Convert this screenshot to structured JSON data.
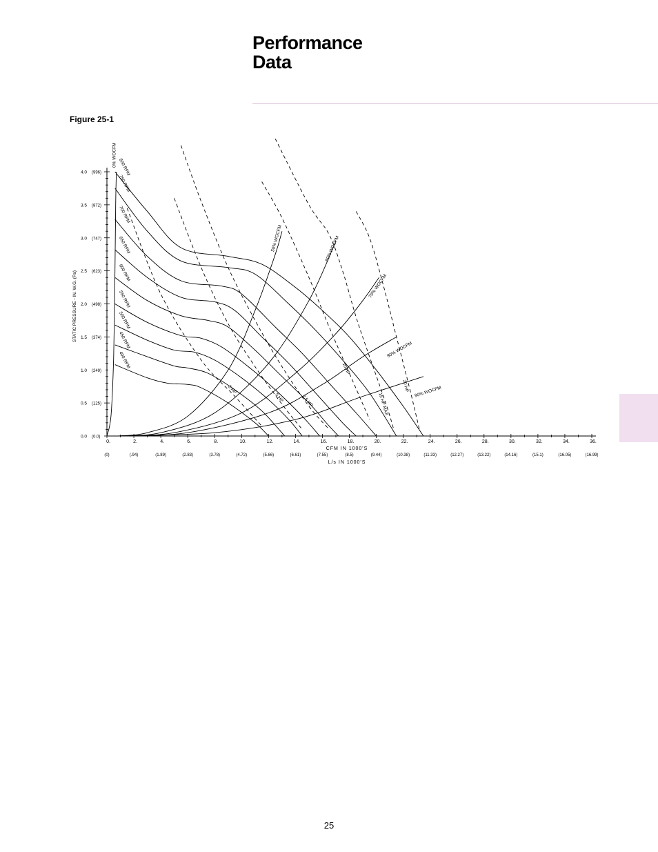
{
  "page": {
    "title_line1": "Performance",
    "title_line2": "Data",
    "figure_label": "Figure 25-1",
    "page_number": "25",
    "accent_color": "#f1dff0",
    "rule_color": "#d9b8d3"
  },
  "chart_data": {
    "type": "line",
    "title": "",
    "xlabel": "CFM IN   1000'S",
    "xlabel2": "L/s IN 1000'S",
    "ylabel": "STATIC PRESSURE - IN. W.G.  (Pa)",
    "xlim": [
      0,
      36
    ],
    "ylim": [
      0,
      4
    ],
    "grid": false,
    "x_ticks": [
      {
        "v": 0,
        "label": "0.",
        "si": "(0)"
      },
      {
        "v": 2,
        "label": "2.",
        "si": "(.94)"
      },
      {
        "v": 4,
        "label": "4.",
        "si": "(1.89)"
      },
      {
        "v": 6,
        "label": "6.",
        "si": "(2.83)"
      },
      {
        "v": 8,
        "label": "8.",
        "si": "(3.78)"
      },
      {
        "v": 10,
        "label": "10.",
        "si": "(4.72)"
      },
      {
        "v": 12,
        "label": "12.",
        "si": "(5.66)"
      },
      {
        "v": 14,
        "label": "14.",
        "si": "(6.61)"
      },
      {
        "v": 16,
        "label": "16.",
        "si": "(7.55)"
      },
      {
        "v": 18,
        "label": "18.",
        "si": "(8.5)"
      },
      {
        "v": 20,
        "label": "20.",
        "si": "(9.44)"
      },
      {
        "v": 22,
        "label": "22.",
        "si": "(10.38)"
      },
      {
        "v": 24,
        "label": "24.",
        "si": "(11.33)"
      },
      {
        "v": 26,
        "label": "26.",
        "si": "(12.27)"
      },
      {
        "v": 28,
        "label": "28.",
        "si": "(13.22)"
      },
      {
        "v": 30,
        "label": "30.",
        "si": "(14.16)"
      },
      {
        "v": 32,
        "label": "32.",
        "si": "(15.1)"
      },
      {
        "v": 34,
        "label": "34.",
        "si": "(16.05)"
      },
      {
        "v": 36,
        "label": "36.",
        "si": "(16.99)"
      }
    ],
    "y_ticks": [
      {
        "v": 0,
        "label": "0.0",
        "si": "(0.0)"
      },
      {
        "v": 0.5,
        "label": "0.5",
        "si": "(125)"
      },
      {
        "v": 1.0,
        "label": "1.0",
        "si": "(249)"
      },
      {
        "v": 1.5,
        "label": "1.5",
        "si": "(374)"
      },
      {
        "v": 2.0,
        "label": "2.0",
        "si": "(498)"
      },
      {
        "v": 2.5,
        "label": "2.5",
        "si": "(623)"
      },
      {
        "v": 3.0,
        "label": "3.0",
        "si": "(747)"
      },
      {
        "v": 3.5,
        "label": "3.5",
        "si": "(872)"
      },
      {
        "v": 4.0,
        "label": "4.0",
        "si": "(996)"
      }
    ],
    "rpm_curves": [
      {
        "name": "800 RPM",
        "points": [
          [
            0.6,
            4.0
          ],
          [
            3,
            3.4
          ],
          [
            5.5,
            2.85
          ],
          [
            9,
            2.72
          ],
          [
            11.5,
            2.6
          ],
          [
            14,
            2.25
          ],
          [
            16,
            1.9
          ],
          [
            18,
            1.5
          ],
          [
            20,
            1.0
          ],
          [
            22,
            0.45
          ],
          [
            23.5,
            0.0
          ]
        ]
      },
      {
        "name": "750 RPM",
        "points": [
          [
            0.6,
            3.75
          ],
          [
            3,
            3.1
          ],
          [
            5.5,
            2.65
          ],
          [
            9,
            2.55
          ],
          [
            11,
            2.45
          ],
          [
            13.5,
            2.0
          ],
          [
            15.5,
            1.6
          ],
          [
            17.5,
            1.15
          ],
          [
            19.5,
            0.65
          ],
          [
            21.5,
            0.0
          ]
        ]
      },
      {
        "name": "700 RPM",
        "points": [
          [
            0.6,
            3.28
          ],
          [
            3,
            2.72
          ],
          [
            5.5,
            2.35
          ],
          [
            8.5,
            2.27
          ],
          [
            10,
            2.15
          ],
          [
            12.5,
            1.65
          ],
          [
            14.5,
            1.25
          ],
          [
            16.5,
            0.8
          ],
          [
            18.5,
            0.35
          ],
          [
            20,
            0.0
          ]
        ]
      },
      {
        "name": "650 RPM",
        "points": [
          [
            0.6,
            2.82
          ],
          [
            3,
            2.4
          ],
          [
            5.5,
            2.1
          ],
          [
            8,
            2.03
          ],
          [
            9.5,
            1.9
          ],
          [
            11.5,
            1.5
          ],
          [
            13.5,
            1.1
          ],
          [
            15.5,
            0.65
          ],
          [
            17.5,
            0.2
          ],
          [
            18.5,
            0.0
          ]
        ]
      },
      {
        "name": "600 RPM",
        "points": [
          [
            0.6,
            2.4
          ],
          [
            3,
            2.05
          ],
          [
            5.5,
            1.82
          ],
          [
            7.5,
            1.75
          ],
          [
            9,
            1.65
          ],
          [
            11,
            1.3
          ],
          [
            13,
            0.9
          ],
          [
            15,
            0.5
          ],
          [
            16.5,
            0.15
          ],
          [
            17.2,
            0.0
          ]
        ]
      },
      {
        "name": "550 RPM",
        "points": [
          [
            0.6,
            2.0
          ],
          [
            3,
            1.72
          ],
          [
            5.5,
            1.52
          ],
          [
            7,
            1.48
          ],
          [
            8.5,
            1.35
          ],
          [
            10.5,
            1.05
          ],
          [
            12.5,
            0.7
          ],
          [
            14.5,
            0.3
          ],
          [
            15.8,
            0.0
          ]
        ]
      },
      {
        "name": "500 RPM",
        "points": [
          [
            0.6,
            1.68
          ],
          [
            3,
            1.45
          ],
          [
            5,
            1.3
          ],
          [
            6.5,
            1.27
          ],
          [
            8,
            1.15
          ],
          [
            10,
            0.88
          ],
          [
            12,
            0.55
          ],
          [
            13.5,
            0.25
          ],
          [
            14.5,
            0.0
          ]
        ]
      },
      {
        "name": "450 RPM",
        "points": [
          [
            0.6,
            1.38
          ],
          [
            3,
            1.2
          ],
          [
            5,
            1.06
          ],
          [
            6,
            1.03
          ],
          [
            7.5,
            0.95
          ],
          [
            9.5,
            0.7
          ],
          [
            11.5,
            0.38
          ],
          [
            13.2,
            0.0
          ]
        ]
      },
      {
        "name": "400 RPM",
        "points": [
          [
            0.6,
            1.08
          ],
          [
            3,
            0.88
          ],
          [
            4.5,
            0.8
          ],
          [
            6,
            0.78
          ],
          [
            7,
            0.73
          ],
          [
            9,
            0.5
          ],
          [
            11,
            0.2
          ],
          [
            12,
            0.0
          ]
        ]
      }
    ],
    "wocfm_curves": [
      {
        "name": "0% WOCFM",
        "points": [
          [
            0,
            0.0
          ],
          [
            0.3,
            0.3
          ],
          [
            0.5,
            1.2
          ],
          [
            0.6,
            2.5
          ],
          [
            0.65,
            3.5
          ],
          [
            0.7,
            4.0
          ]
        ]
      },
      {
        "name": "50% WOCFM",
        "points": [
          [
            0.8,
            0
          ],
          [
            3,
            0.05
          ],
          [
            6,
            0.3
          ],
          [
            9,
            1.0
          ],
          [
            11,
            1.9
          ],
          [
            12.5,
            2.75
          ],
          [
            13,
            3.1
          ]
        ]
      },
      {
        "name": "60% WOCFM",
        "points": [
          [
            0.8,
            0
          ],
          [
            4,
            0.05
          ],
          [
            8,
            0.35
          ],
          [
            12,
            1.1
          ],
          [
            15,
            2.05
          ],
          [
            17,
            2.95
          ]
        ]
      },
      {
        "name": "70% WOCFM",
        "points": [
          [
            0.8,
            0
          ],
          [
            5,
            0.05
          ],
          [
            10,
            0.35
          ],
          [
            14,
            0.95
          ],
          [
            17,
            1.55
          ],
          [
            19,
            2.05
          ],
          [
            20.2,
            2.4
          ]
        ]
      },
      {
        "name": "80% WOCFM",
        "points": [
          [
            0.8,
            0
          ],
          [
            6,
            0.05
          ],
          [
            12,
            0.35
          ],
          [
            16,
            0.78
          ],
          [
            19,
            1.2
          ],
          [
            21.5,
            1.5
          ]
        ]
      },
      {
        "name": "90% WOCFM",
        "points": [
          [
            0.8,
            0
          ],
          [
            8,
            0.05
          ],
          [
            14,
            0.25
          ],
          [
            19,
            0.6
          ],
          [
            23.5,
            0.9
          ]
        ]
      }
    ],
    "hp_curves": [
      {
        "name": "3 HP",
        "points": [
          [
            1.5,
            3.45
          ],
          [
            4,
            2.15
          ],
          [
            7,
            1.15
          ],
          [
            9.5,
            0.6
          ],
          [
            11.5,
            0.15
          ]
        ]
      },
      {
        "name": "5 HP",
        "points": [
          [
            5,
            3.6
          ],
          [
            7,
            2.55
          ],
          [
            9,
            1.7
          ],
          [
            11,
            1.05
          ],
          [
            13,
            0.48
          ],
          [
            14.5,
            0.1
          ]
        ]
      },
      {
        "name": "7.5 HP",
        "points": [
          [
            5.5,
            4.4
          ],
          [
            7,
            3.55
          ],
          [
            9,
            2.55
          ],
          [
            11,
            1.75
          ],
          [
            13,
            1.05
          ],
          [
            15,
            0.45
          ],
          [
            16.5,
            0.1
          ]
        ]
      },
      {
        "name": "10 HP",
        "points": [
          [
            11.5,
            3.85
          ],
          [
            13,
            3.3
          ],
          [
            15,
            2.4
          ],
          [
            16.5,
            1.65
          ],
          [
            18,
            0.95
          ],
          [
            19.5,
            0.25
          ]
        ]
      },
      {
        "name": "15 HP MAX",
        "points": [
          [
            12.5,
            4.5
          ],
          [
            15,
            3.5
          ],
          [
            16.5,
            3.05
          ],
          [
            17.5,
            2.5
          ],
          [
            18.5,
            1.8
          ],
          [
            19.5,
            1.2
          ],
          [
            20.7,
            0.5
          ],
          [
            21.3,
            0.1
          ]
        ]
      },
      {
        "name": "20 HP",
        "points": [
          [
            18.5,
            3.4
          ],
          [
            19.5,
            3.0
          ],
          [
            20.5,
            2.3
          ],
          [
            21.5,
            1.5
          ],
          [
            22.5,
            0.7
          ],
          [
            23.2,
            0.1
          ]
        ]
      }
    ]
  }
}
